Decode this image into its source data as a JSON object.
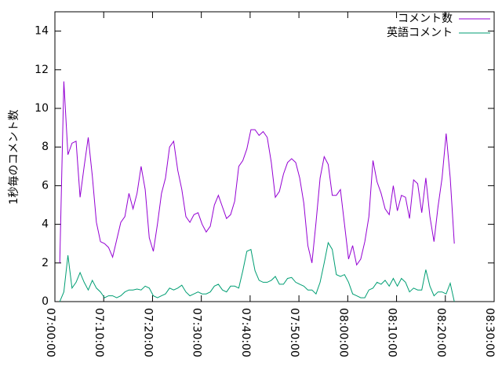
{
  "chart_data": {
    "type": "line",
    "ylabel": "1秒毎のコメント数",
    "x": [
      25260,
      25310,
      25360,
      25410,
      25460,
      25510,
      25560,
      25610,
      25660,
      25710,
      25760,
      25810,
      25860,
      25910,
      25960,
      26010,
      26060,
      26110,
      26160,
      26210,
      26260,
      26310,
      26360,
      26410,
      26460,
      26510,
      26560,
      26610,
      26660,
      26710,
      26760,
      26810,
      26860,
      26910,
      26960,
      27010,
      27060,
      27110,
      27160,
      27210,
      27260,
      27310,
      27360,
      27410,
      27460,
      27510,
      27560,
      27610,
      27660,
      27710,
      27760,
      27810,
      27860,
      27910,
      27960,
      28010,
      28060,
      28110,
      28160,
      28210,
      28260,
      28310,
      28360,
      28410,
      28460,
      28510,
      28560,
      28610,
      28660,
      28710,
      28760,
      28810,
      28860,
      28910,
      28960,
      29010,
      29060,
      29110,
      29160,
      29210,
      29260,
      29310,
      29360,
      29410,
      29460,
      29510,
      29560,
      29610,
      29660,
      29710,
      29760,
      29810,
      29860,
      29910,
      29960,
      30010,
      30060,
      30110
    ],
    "series": [
      {
        "name": "コメント数",
        "color": "#9400d3",
        "values": [
          2.0,
          11.4,
          7.6,
          8.2,
          8.3,
          5.4,
          7.0,
          8.5,
          6.5,
          4.1,
          3.1,
          3.0,
          2.8,
          2.3,
          3.2,
          4.1,
          4.4,
          5.6,
          4.8,
          5.6,
          7.0,
          5.8,
          3.3,
          2.6,
          4.0,
          5.6,
          6.4,
          8.0,
          8.3,
          6.8,
          5.8,
          4.4,
          4.1,
          4.5,
          4.6,
          4.0,
          3.6,
          3.9,
          5.0,
          5.5,
          4.9,
          4.3,
          4.5,
          5.2,
          7.0,
          7.3,
          7.9,
          8.9,
          8.9,
          8.6,
          8.8,
          8.5,
          7.2,
          5.4,
          5.7,
          6.6,
          7.2,
          7.4,
          7.2,
          6.4,
          5.1,
          2.9,
          2.0,
          4.1,
          6.4,
          7.5,
          7.1,
          5.5,
          5.5,
          5.8,
          4.0,
          2.2,
          2.9,
          1.9,
          2.2,
          3.1,
          4.4,
          7.3,
          6.2,
          5.6,
          4.8,
          4.5,
          6.0,
          4.7,
          5.5,
          5.4,
          4.3,
          6.3,
          6.1,
          4.6,
          6.4,
          4.4,
          3.1,
          4.9,
          6.4,
          8.7,
          6.4,
          3.0
        ]
      },
      {
        "name": "英語コメント",
        "color": "#009e73",
        "values": [
          0.0,
          0.5,
          2.4,
          0.7,
          1.0,
          1.5,
          1.0,
          0.6,
          1.1,
          0.7,
          0.5,
          0.2,
          0.3,
          0.3,
          0.2,
          0.3,
          0.5,
          0.6,
          0.6,
          0.65,
          0.6,
          0.8,
          0.7,
          0.3,
          0.2,
          0.3,
          0.4,
          0.7,
          0.6,
          0.7,
          0.85,
          0.5,
          0.3,
          0.4,
          0.5,
          0.4,
          0.4,
          0.5,
          0.8,
          0.9,
          0.6,
          0.5,
          0.8,
          0.8,
          0.7,
          1.6,
          2.6,
          2.7,
          1.6,
          1.1,
          1.0,
          1.0,
          1.1,
          1.3,
          0.9,
          0.9,
          1.2,
          1.25,
          1.0,
          0.9,
          0.8,
          0.6,
          0.6,
          0.4,
          1.0,
          2.0,
          3.05,
          2.7,
          1.4,
          1.3,
          1.4,
          1.0,
          0.4,
          0.3,
          0.2,
          0.2,
          0.6,
          0.7,
          1.0,
          0.9,
          1.1,
          0.8,
          1.2,
          0.8,
          1.2,
          1.0,
          0.5,
          0.7,
          0.6,
          0.6,
          1.65,
          0.8,
          0.3,
          0.5,
          0.5,
          0.4,
          0.95,
          0.0
        ]
      }
    ],
    "xlim": [
      25200,
      30600
    ],
    "xticks": [
      {
        "value": 25200,
        "label": "07:00:00"
      },
      {
        "value": 25800,
        "label": "07:10:00"
      },
      {
        "value": 26400,
        "label": "07:20:00"
      },
      {
        "value": 27000,
        "label": "07:30:00"
      },
      {
        "value": 27600,
        "label": "07:40:00"
      },
      {
        "value": 28200,
        "label": "07:50:00"
      },
      {
        "value": 28800,
        "label": "08:00:00"
      },
      {
        "value": 29400,
        "label": "08:10:00"
      },
      {
        "value": 30000,
        "label": "08:20:00"
      },
      {
        "value": 30600,
        "label": "08:30:00"
      }
    ],
    "ylim": [
      0,
      15
    ],
    "yticks": [
      0,
      2,
      4,
      6,
      8,
      10,
      12,
      14
    ],
    "legend": "top-right",
    "grid": false
  }
}
